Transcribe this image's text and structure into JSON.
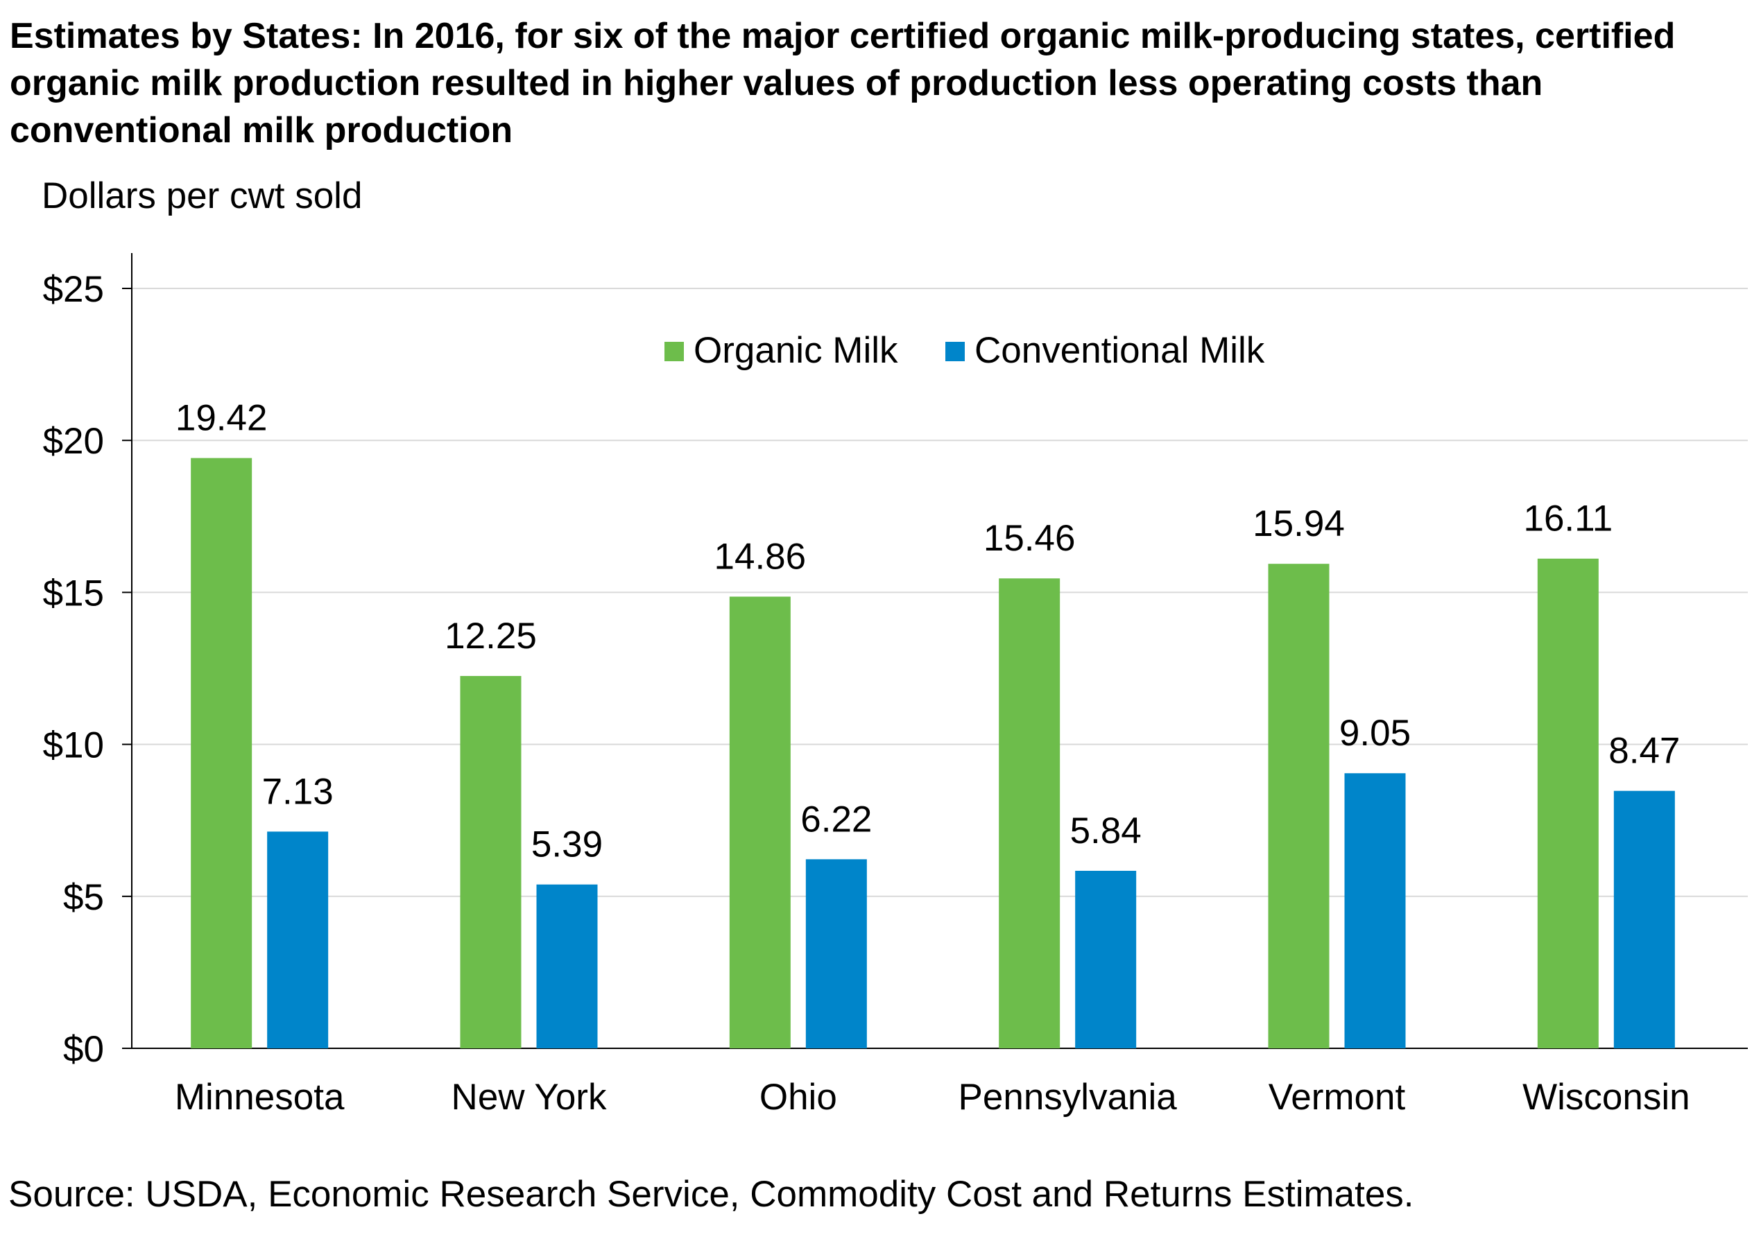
{
  "chart_data": {
    "type": "bar",
    "title": "Estimates by States: In 2016, for six of the major certified organic milk-producing states, certified organic milk production resulted in higher values of production less operating costs than conventional milk production",
    "ylabel": "Dollars  per cwt  sold",
    "xlabel": "",
    "source": "Source: USDA, Economic Research Service, Commodity Cost and Returns Estimates.",
    "categories": [
      "Minnesota",
      "New York",
      "Ohio",
      "Pennsylvania",
      "Vermont",
      "Wisconsin"
    ],
    "series": [
      {
        "name": "Organic Milk",
        "color": "#6dbd4b",
        "values": [
          19.42,
          12.25,
          14.86,
          15.46,
          15.94,
          16.11
        ]
      },
      {
        "name": "Conventional Milk",
        "color": "#0085ca",
        "values": [
          7.13,
          5.39,
          6.22,
          5.84,
          9.05,
          8.47
        ]
      }
    ],
    "ylim": [
      0,
      25
    ],
    "yticks": [
      0,
      5,
      10,
      15,
      20,
      25
    ],
    "ytick_labels": [
      "$0",
      "$5",
      "$10",
      "$15",
      "$20",
      "$25"
    ],
    "grid": true,
    "legend_position": "top-center",
    "data_labels": true
  }
}
